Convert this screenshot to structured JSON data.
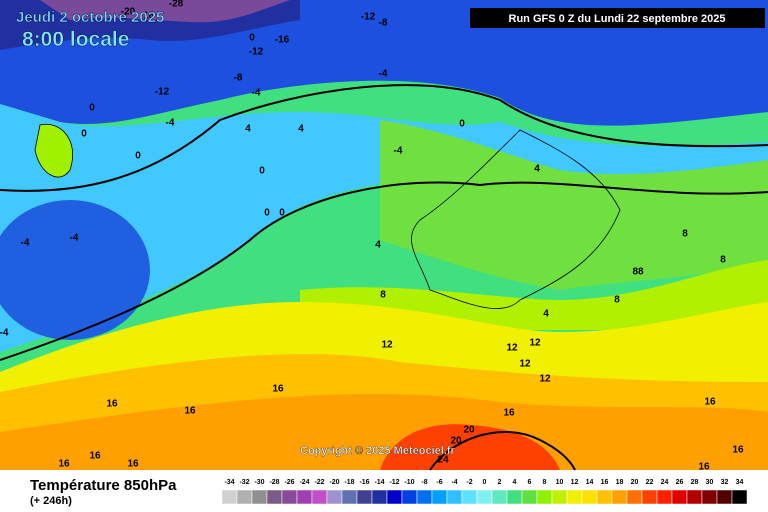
{
  "header": {
    "date": "Jeudi 2 octobre 2025",
    "time": "8:00 locale",
    "run": "Run GFS 0 Z du Lundi 22 septembre 2025"
  },
  "copyright": "Copyright © 2025 Meteociel.fr",
  "footer": {
    "title": "Température 850hPa",
    "lead": "(+ 246h)"
  },
  "legend": {
    "values": [
      -34,
      -32,
      -30,
      -28,
      -26,
      -24,
      -22,
      -20,
      -18,
      -16,
      -14,
      -12,
      -10,
      -8,
      -6,
      -4,
      -2,
      0,
      2,
      4,
      6,
      8,
      10,
      12,
      14,
      16,
      18,
      20,
      22,
      24,
      26,
      28,
      30,
      32,
      34
    ],
    "colors": [
      "#d0d0d0",
      "#b0b0b0",
      "#909090",
      "#7a5a8a",
      "#8a4a9a",
      "#a040b0",
      "#c050c8",
      "#a090d0",
      "#6070b0",
      "#404090",
      "#2030a0",
      "#0000c8",
      "#0040e0",
      "#0070f0",
      "#00a0ff",
      "#30c0ff",
      "#60e0ff",
      "#80f0f0",
      "#60e8c0",
      "#40e080",
      "#60e040",
      "#90f000",
      "#c0f000",
      "#f0f000",
      "#ffe000",
      "#ffc000",
      "#ffa000",
      "#ff7000",
      "#ff4000",
      "#ff2000",
      "#e00000",
      "#b00000",
      "#800000",
      "#500000",
      "#000000"
    ]
  },
  "contour_labels": [
    -20,
    -16,
    -28,
    -12,
    -8,
    0,
    -16,
    -12,
    -8,
    -4,
    -12,
    -4,
    0,
    -4,
    4,
    4,
    0,
    0,
    0,
    -4,
    4,
    0,
    0,
    0,
    -4,
    -4,
    4,
    8,
    88,
    8,
    8,
    4,
    8,
    12,
    12,
    12,
    12,
    12,
    16,
    16,
    16,
    16,
    16,
    20,
    20,
    24,
    16,
    16,
    16,
    16,
    16,
    -4
  ]
}
